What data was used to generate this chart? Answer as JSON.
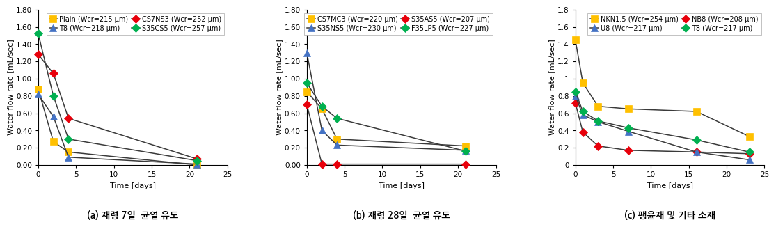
{
  "panel_a": {
    "title": "(a) 재령 7일  균열 유도",
    "series": [
      {
        "label": "Plain (Wcr=215 μm)",
        "color": "#FFC000",
        "marker": "s",
        "x": [
          0,
          2,
          4,
          21
        ],
        "y": [
          0.88,
          0.27,
          0.15,
          0.0
        ]
      },
      {
        "label": "CS7NS3 (Wcr=252 μm)",
        "color": "#E8000B",
        "marker": "D",
        "x": [
          0,
          2,
          4,
          21
        ],
        "y": [
          1.28,
          1.06,
          0.54,
          0.07
        ]
      },
      {
        "label": "T8 (Wcr=218 μm)",
        "color": "#4472C4",
        "marker": "^",
        "x": [
          0,
          2,
          4,
          21
        ],
        "y": [
          0.82,
          0.56,
          0.09,
          0.01
        ]
      },
      {
        "label": "S35CS5 (Wcr=257 μm)",
        "color": "#00B050",
        "marker": "D",
        "x": [
          0,
          2,
          4,
          21
        ],
        "y": [
          1.52,
          0.8,
          0.3,
          0.05
        ]
      }
    ],
    "ylim": [
      0,
      1.8
    ],
    "yticks": [
      0.0,
      0.2,
      0.4,
      0.6,
      0.8,
      1.0,
      1.2,
      1.4,
      1.6,
      1.8
    ],
    "yticklabels": [
      "0.00",
      "0.20",
      "0.40",
      "0.60",
      "0.80",
      "1.00",
      "1.20",
      "1.40",
      "1.60",
      "1.80"
    ],
    "xlim": [
      0,
      25
    ],
    "xticks": [
      0,
      5,
      10,
      15,
      20,
      25
    ]
  },
  "panel_b": {
    "title": "(b) 재령 28일  균열 유도",
    "series": [
      {
        "label": "CS7MC3 (Wcr=220 μm)",
        "color": "#FFC000",
        "marker": "s",
        "x": [
          0,
          2,
          4,
          21
        ],
        "y": [
          0.85,
          0.65,
          0.3,
          0.22
        ]
      },
      {
        "label": "S35AS5 (Wcr=207 μm)",
        "color": "#E8000B",
        "marker": "D",
        "x": [
          0,
          2,
          4,
          21
        ],
        "y": [
          0.7,
          0.01,
          0.01,
          0.01
        ]
      },
      {
        "label": "S35NS5 (Wcr=230 μm)",
        "color": "#4472C4",
        "marker": "^",
        "x": [
          0,
          2,
          4,
          21
        ],
        "y": [
          1.3,
          0.4,
          0.23,
          0.17
        ]
      },
      {
        "label": "F35LP5 (Wcr=227 μm)",
        "color": "#00B050",
        "marker": "D",
        "x": [
          0,
          2,
          4,
          21
        ],
        "y": [
          0.95,
          0.68,
          0.54,
          0.16
        ]
      }
    ],
    "ylim": [
      0,
      1.8
    ],
    "yticks": [
      0.0,
      0.2,
      0.4,
      0.6,
      0.8,
      1.0,
      1.2,
      1.4,
      1.6,
      1.8
    ],
    "yticklabels": [
      "0.00",
      "0.20",
      "0.40",
      "0.60",
      "0.80",
      "1.00",
      "1.20",
      "1.40",
      "1.60",
      "1.80"
    ],
    "xlim": [
      0,
      25
    ],
    "xticks": [
      0,
      5,
      10,
      15,
      20,
      25
    ]
  },
  "panel_c": {
    "title": "(c) 팽윤재 및 기타 소재",
    "series": [
      {
        "label": "NKN1.5 (Wcr=254 μm)",
        "color": "#FFC000",
        "marker": "s",
        "x": [
          0,
          1,
          3,
          7,
          16,
          23
        ],
        "y": [
          1.45,
          0.95,
          0.68,
          0.65,
          0.62,
          0.33
        ]
      },
      {
        "label": "NB8 (Wcr=208 μm)",
        "color": "#E8000B",
        "marker": "D",
        "x": [
          0,
          1,
          3,
          7,
          16,
          23
        ],
        "y": [
          0.72,
          0.38,
          0.22,
          0.17,
          0.15,
          0.13
        ]
      },
      {
        "label": "U8 (Wcr=217 μm)",
        "color": "#4472C4",
        "marker": "^",
        "x": [
          0,
          1,
          3,
          7,
          16,
          23
        ],
        "y": [
          0.8,
          0.58,
          0.5,
          0.39,
          0.15,
          0.06
        ]
      },
      {
        "label": "T8 (Wcr=217 μm)",
        "color": "#00B050",
        "marker": "D",
        "x": [
          0,
          1,
          3,
          7,
          16,
          23
        ],
        "y": [
          0.85,
          0.62,
          0.51,
          0.43,
          0.29,
          0.15
        ]
      }
    ],
    "ylim": [
      0,
      1.8
    ],
    "yticks": [
      0.0,
      0.2,
      0.4,
      0.6,
      0.8,
      1.0,
      1.2,
      1.4,
      1.6,
      1.8
    ],
    "yticklabels": [
      "0",
      "0.2",
      "0.4",
      "0.6",
      "0.8",
      "1",
      "1.2",
      "1.4",
      "1.6",
      "1.8"
    ],
    "xlim": [
      0,
      25
    ],
    "xticks": [
      0,
      5,
      10,
      15,
      20,
      25
    ]
  },
  "ylabel": "Water flow rate [mL/sec]",
  "xlabel": "Time [days]",
  "line_color": "#3a3a3a",
  "line_width": 1.1,
  "marker_size_sq": 7,
  "marker_size_dia": 6,
  "marker_size_tri": 7,
  "legend_fontsize": 7.0,
  "axis_label_fontsize": 8.0,
  "tick_fontsize": 7.5,
  "caption_fontsize": 9.5
}
